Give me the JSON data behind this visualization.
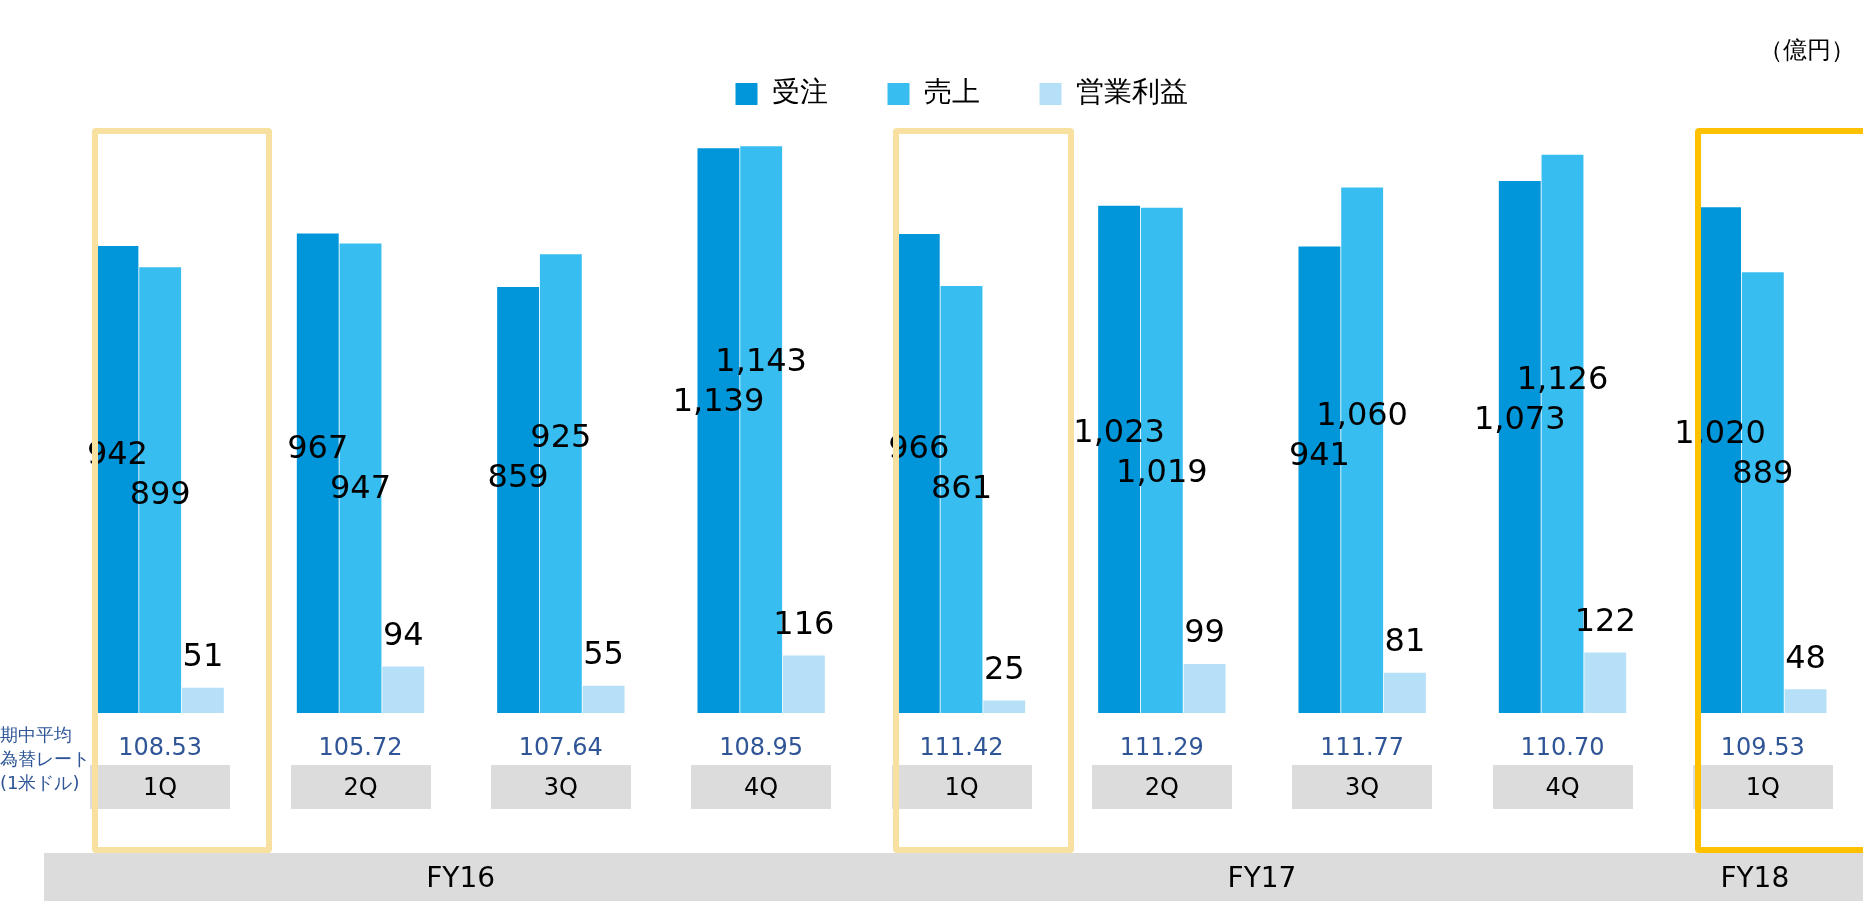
{
  "chart_data": {
    "type": "bar",
    "ylabel": "（億円）",
    "categories": [
      "1Q",
      "2Q",
      "3Q",
      "4Q",
      "1Q",
      "2Q",
      "3Q",
      "4Q",
      "1Q"
    ],
    "series": [
      {
        "name": "受注",
        "color": "#0096d9",
        "values": [
          942,
          967,
          859,
          1139,
          966,
          1023,
          941,
          1073,
          1020
        ],
        "value_labels": [
          "942",
          "967",
          "859",
          "1,139",
          "966",
          "1,023",
          "941",
          "1,073",
          "1,020"
        ]
      },
      {
        "name": "売上",
        "color": "#38bdf0",
        "values": [
          899,
          947,
          925,
          1143,
          861,
          1019,
          1060,
          1126,
          889
        ],
        "value_labels": [
          "899",
          "947",
          "925",
          "1,143",
          "861",
          "1,019",
          "1,060",
          "1,126",
          "889"
        ]
      },
      {
        "name": "営業利益",
        "color": "#b5e0f7",
        "values": [
          51,
          94,
          55,
          116,
          25,
          99,
          81,
          122,
          48
        ],
        "value_labels": [
          "51",
          "94",
          "55",
          "116",
          "25",
          "99",
          "81",
          "122",
          "48"
        ]
      }
    ],
    "legend": "top",
    "grid": false,
    "tick_labels": false,
    "annotations": [
      "期中平均",
      "為替レート",
      "(1米ドル)",
      "108.53",
      "105.72",
      "107.64",
      "108.95",
      "111.42",
      "111.29",
      "111.77",
      "110.70",
      "109.53",
      "FY16",
      "FY17",
      "FY18"
    ]
  }
}
